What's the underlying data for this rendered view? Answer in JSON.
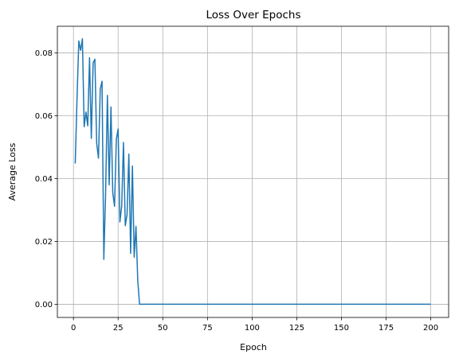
{
  "chart_data": {
    "type": "line",
    "title": "Loss Over Epochs",
    "xlabel": "Epoch",
    "ylabel": "Average Loss",
    "xlim": [
      -9,
      210
    ],
    "ylim": [
      -0.0042,
      0.0885
    ],
    "grid": true,
    "x_ticks": [
      0,
      25,
      50,
      75,
      100,
      125,
      150,
      175,
      200
    ],
    "x_tick_labels": [
      "0",
      "25",
      "50",
      "75",
      "100",
      "125",
      "150",
      "175",
      "200"
    ],
    "y_ticks": [
      0.0,
      0.02,
      0.04,
      0.06,
      0.08
    ],
    "y_tick_labels": [
      "0.00",
      "0.02",
      "0.04",
      "0.06",
      "0.08"
    ],
    "series": [
      {
        "color": "#1f77b4",
        "x": [
          1,
          2,
          3,
          4,
          5,
          6,
          7,
          8,
          9,
          10,
          11,
          12,
          13,
          14,
          15,
          16,
          17,
          18,
          19,
          20,
          21,
          22,
          23,
          24,
          25,
          26,
          27,
          28,
          29,
          30,
          31,
          32,
          33,
          34,
          35,
          36,
          37,
          38,
          200
        ],
        "values": [
          0.0448,
          0.0655,
          0.0838,
          0.0808,
          0.0845,
          0.0565,
          0.0612,
          0.0568,
          0.0785,
          0.0528,
          0.0768,
          0.078,
          0.0512,
          0.0465,
          0.0685,
          0.071,
          0.0143,
          0.0355,
          0.0665,
          0.038,
          0.0628,
          0.0355,
          0.0312,
          0.0525,
          0.0558,
          0.0262,
          0.0312,
          0.0515,
          0.025,
          0.0285,
          0.0478,
          0.0162,
          0.044,
          0.015,
          0.0248,
          0.0075,
          0.0,
          0.0,
          0.0
        ]
      }
    ]
  }
}
